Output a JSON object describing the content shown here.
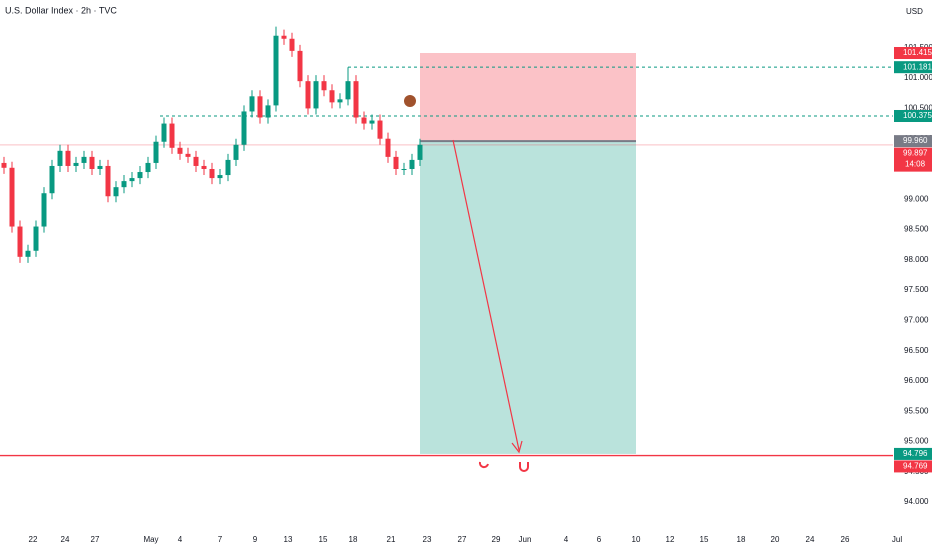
{
  "chart_data": {
    "type": "candlestick",
    "title": "U.S. Dollar Index · 2h · TVC",
    "currency": "USD",
    "countdown": "14:08",
    "up_color": "#089981",
    "down_color": "#f23645",
    "grid": true,
    "x": [
      1,
      3,
      5,
      7,
      9,
      11,
      13,
      15,
      17,
      19,
      21,
      23,
      25,
      27,
      29,
      31,
      33,
      35,
      37,
      39,
      41,
      43,
      45,
      47,
      49,
      51,
      53,
      55,
      57,
      59,
      61,
      63,
      65,
      67,
      69,
      71,
      73,
      75,
      77,
      79,
      81,
      83,
      85,
      87,
      89,
      91,
      93,
      95,
      97,
      99,
      101,
      103,
      105
    ],
    "open": [
      99.6,
      99.52,
      98.55,
      98.05,
      98.15,
      98.55,
      99.1,
      99.55,
      99.8,
      99.55,
      99.6,
      99.7,
      99.5,
      99.55,
      99.05,
      99.2,
      99.3,
      99.35,
      99.45,
      99.6,
      99.95,
      100.25,
      99.85,
      99.75,
      99.7,
      99.55,
      99.5,
      99.35,
      99.4,
      99.65,
      99.9,
      100.45,
      100.7,
      100.35,
      100.55,
      101.7,
      101.65,
      101.45,
      100.95,
      100.5,
      100.95,
      100.8,
      100.6,
      100.65,
      100.95,
      100.35,
      100.25,
      100.3,
      100.0,
      99.7,
      99.5,
      99.5,
      99.65
    ],
    "high": [
      99.7,
      99.62,
      98.65,
      98.25,
      98.65,
      99.2,
      99.65,
      99.9,
      99.9,
      99.7,
      99.8,
      99.8,
      99.65,
      99.65,
      99.3,
      99.4,
      99.45,
      99.55,
      99.7,
      100.05,
      100.35,
      100.35,
      99.95,
      99.85,
      99.8,
      99.65,
      99.6,
      99.5,
      99.75,
      100.0,
      100.55,
      100.8,
      100.8,
      100.65,
      101.85,
      101.8,
      101.75,
      101.55,
      101.05,
      101.05,
      101.05,
      100.9,
      100.75,
      101.18,
      101.05,
      100.45,
      100.4,
      100.4,
      100.1,
      99.8,
      99.6,
      99.75,
      100.0
    ],
    "low": [
      99.42,
      98.45,
      97.95,
      97.95,
      98.05,
      98.45,
      99.0,
      99.45,
      99.45,
      99.45,
      99.5,
      99.4,
      99.4,
      98.95,
      98.95,
      99.1,
      99.2,
      99.25,
      99.35,
      99.5,
      99.85,
      99.75,
      99.65,
      99.6,
      99.45,
      99.4,
      99.25,
      99.25,
      99.3,
      99.55,
      99.8,
      100.35,
      100.25,
      100.25,
      100.45,
      101.55,
      101.35,
      100.85,
      100.4,
      100.4,
      100.7,
      100.5,
      100.5,
      100.55,
      100.25,
      100.15,
      100.15,
      99.9,
      99.6,
      99.4,
      99.4,
      99.4,
      99.55
    ],
    "close": [
      99.52,
      98.55,
      98.05,
      98.15,
      98.55,
      99.1,
      99.55,
      99.8,
      99.55,
      99.6,
      99.7,
      99.5,
      99.55,
      99.05,
      99.2,
      99.3,
      99.35,
      99.45,
      99.6,
      99.95,
      100.25,
      99.85,
      99.75,
      99.7,
      99.55,
      99.5,
      99.35,
      99.4,
      99.65,
      99.9,
      100.45,
      100.7,
      100.35,
      100.55,
      101.7,
      101.65,
      101.45,
      100.95,
      100.5,
      100.95,
      100.8,
      100.6,
      100.65,
      100.95,
      100.35,
      100.25,
      100.3,
      100.0,
      99.7,
      99.5,
      99.5,
      99.65,
      99.9
    ],
    "xlim": [
      0,
      223.25
    ],
    "xticks": [
      {
        "value": 8.25,
        "label": "22"
      },
      {
        "value": 16.25,
        "label": "24"
      },
      {
        "value": 23.75,
        "label": "27"
      },
      {
        "value": 37.75,
        "label": "May"
      },
      {
        "value": 45,
        "label": "4"
      },
      {
        "value": 55,
        "label": "7"
      },
      {
        "value": 63.75,
        "label": "9"
      },
      {
        "value": 72,
        "label": "13"
      },
      {
        "value": 80.75,
        "label": "15"
      },
      {
        "value": 88.25,
        "label": "18"
      },
      {
        "value": 97.75,
        "label": "21"
      },
      {
        "value": 106.75,
        "label": "23"
      },
      {
        "value": 115.5,
        "label": "27"
      },
      {
        "value": 124,
        "label": "29"
      },
      {
        "value": 131.25,
        "label": "Jun"
      },
      {
        "value": 141.5,
        "label": "4"
      },
      {
        "value": 149.75,
        "label": "6"
      },
      {
        "value": 159,
        "label": "10"
      },
      {
        "value": 167.5,
        "label": "12"
      },
      {
        "value": 176,
        "label": "15"
      },
      {
        "value": 185.25,
        "label": "18"
      },
      {
        "value": 193.75,
        "label": "20"
      },
      {
        "value": 202.5,
        "label": "24"
      },
      {
        "value": 211.25,
        "label": "26"
      },
      {
        "value": 224.25,
        "label": "Jul"
      }
    ],
    "ylim": [
      93.54,
      102.29
    ],
    "yticks": [
      {
        "value": 94,
        "label": "94.000"
      },
      {
        "value": 94.5,
        "label": "94.500"
      },
      {
        "value": 95,
        "label": "95.000"
      },
      {
        "value": 95.5,
        "label": "95.500"
      },
      {
        "value": 96,
        "label": "96.000"
      },
      {
        "value": 96.5,
        "label": "96.500"
      },
      {
        "value": 97,
        "label": "97.000"
      },
      {
        "value": 97.5,
        "label": "97.500"
      },
      {
        "value": 98,
        "label": "98.000"
      },
      {
        "value": 98.5,
        "label": "98.500"
      },
      {
        "value": 99,
        "label": "99.000"
      },
      {
        "value": 99.5,
        "label": "99.500"
      },
      {
        "value": 100,
        "label": "100.000"
      },
      {
        "value": 100.5,
        "label": "100.500"
      },
      {
        "value": 101,
        "label": "101.000"
      },
      {
        "value": 101.5,
        "label": "101.500"
      }
    ],
    "levels": [
      {
        "value": 101.415,
        "label": "101.415",
        "color": "#f23645",
        "style": "none"
      },
      {
        "value": 101.181,
        "label": "101.181",
        "color": "#089981",
        "style": "dashed"
      },
      {
        "value": 100.375,
        "label": "100.375",
        "color": "#089981",
        "style": "dashed"
      },
      {
        "value": 99.96,
        "label": "99.960",
        "color": "#787b86",
        "style": "none"
      },
      {
        "value": 99.897,
        "label": "99.897",
        "color": "#f23645",
        "style": "solid-thin"
      },
      {
        "value": 94.796,
        "label": "94.796",
        "color": "#089981",
        "style": "none"
      },
      {
        "value": 94.769,
        "label": "94.769",
        "color": "#f23645",
        "style": "solid"
      }
    ]
  }
}
